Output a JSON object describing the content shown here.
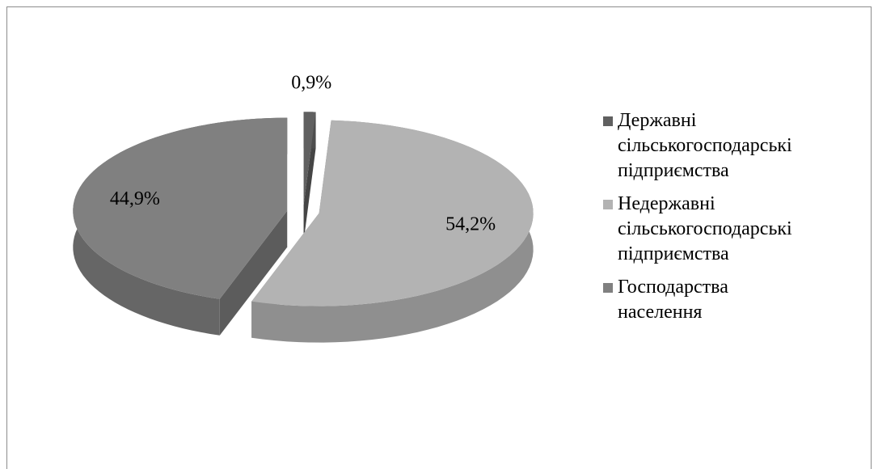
{
  "chart_data": {
    "type": "pie",
    "categories": [
      "Державні сільськогосподарські підприємства",
      "Недержавні сільськогосподарські підприємства",
      "Господарства населення"
    ],
    "values": [
      0.9,
      54.2,
      44.9
    ],
    "value_labels": [
      "0,9%",
      "54,2%",
      "44,9%"
    ],
    "colors": [
      "#606060",
      "#b3b3b3",
      "#808080"
    ],
    "legend": "right"
  }
}
